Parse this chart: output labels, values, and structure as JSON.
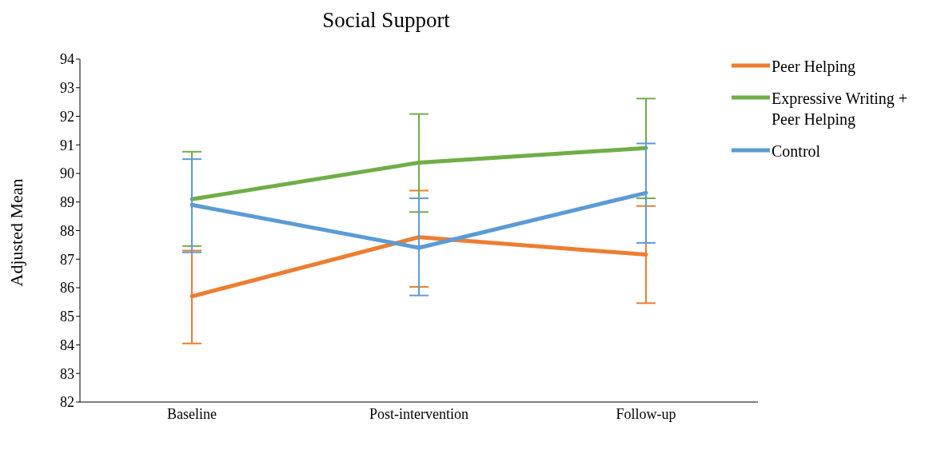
{
  "chart_data": {
    "type": "line",
    "title": "Social Support",
    "ylabel": "Adjusted Mean",
    "categories": [
      "Baseline",
      "Post-intervention",
      "Follow-up"
    ],
    "ylim": [
      82,
      94
    ],
    "yticks": [
      82,
      83,
      84,
      85,
      86,
      87,
      88,
      89,
      90,
      91,
      92,
      93,
      94
    ],
    "grid": false,
    "legend": "right",
    "marker": "none",
    "line_style": "solid",
    "series": [
      {
        "name": "Peer Helping",
        "color": "#ed7d31",
        "values": [
          85.7,
          87.77,
          87.16
        ],
        "errors": [
          [
            84.05,
            87.3
          ],
          [
            86.03,
            89.4
          ],
          [
            85.46,
            88.86
          ]
        ]
      },
      {
        "name": "Expressive Writing + Peer Helping",
        "color": "#70ad47",
        "values": [
          89.1,
          90.38,
          90.89
        ],
        "errors": [
          [
            87.46,
            90.76
          ],
          [
            88.65,
            92.08
          ],
          [
            89.13,
            92.62
          ]
        ]
      },
      {
        "name": "Control",
        "color": "#5b9bd5",
        "values": [
          88.9,
          87.4,
          89.32
        ],
        "errors": [
          [
            87.24,
            90.5
          ],
          [
            85.73,
            89.13
          ],
          [
            87.57,
            91.05
          ]
        ]
      }
    ]
  }
}
